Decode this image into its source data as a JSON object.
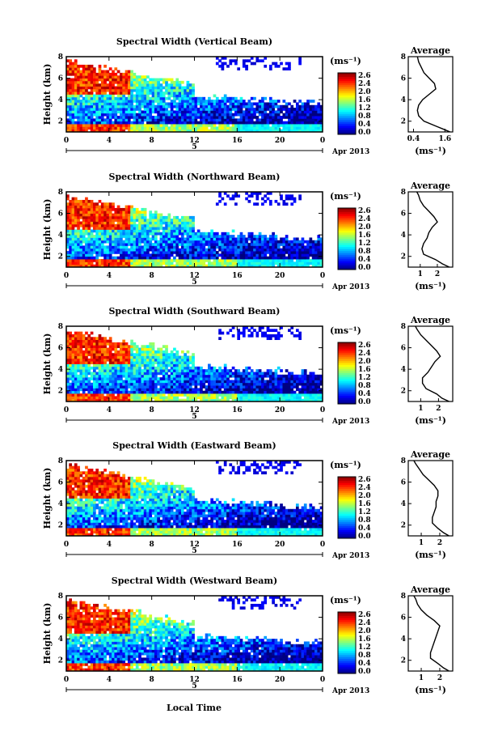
{
  "figure": {
    "xlabel": "Local Time",
    "date_label": "Apr 2013",
    "unit_label": "(ms⁻¹)"
  },
  "chart_data": [
    {
      "type": "heatmap",
      "title": "Spectral Width (Vertical Beam)",
      "ylabel": "Height (km)",
      "x_ticks": [
        "0",
        "4",
        "8",
        "12",
        "16",
        "20",
        "0"
      ],
      "day_label": "5",
      "y_ticks": [
        "2",
        "4",
        "6",
        "8"
      ],
      "xlim": [
        0,
        24
      ],
      "ylim": [
        1,
        8
      ],
      "colorbar": {
        "ticks": [
          "2.6",
          "2.4",
          "2.0",
          "1.6",
          "1.2",
          "0.8",
          "0.4",
          "0.0"
        ],
        "range": [
          0,
          2.8
        ]
      },
      "average": {
        "title": "Average",
        "xlabel": "(ms⁻¹)",
        "x_ticks": [
          "0.4",
          "1.6"
        ],
        "xlim": [
          0.2,
          1.9
        ],
        "profile": [
          [
            1.8,
            1.0
          ],
          [
            1.6,
            1.2
          ],
          [
            1.3,
            1.5
          ],
          [
            0.8,
            2.0
          ],
          [
            0.6,
            2.5
          ],
          [
            0.55,
            3.0
          ],
          [
            0.6,
            3.5
          ],
          [
            0.75,
            4.0
          ],
          [
            1.0,
            4.5
          ],
          [
            1.25,
            5.0
          ],
          [
            1.2,
            5.5
          ],
          [
            1.0,
            6.0
          ],
          [
            0.8,
            6.5
          ],
          [
            0.7,
            7.0
          ],
          [
            0.6,
            7.5
          ],
          [
            0.55,
            8.0
          ]
        ]
      }
    },
    {
      "type": "heatmap",
      "title": "Spectral Width (Northward Beam)",
      "ylabel": "Height (km)",
      "x_ticks": [
        "0",
        "4",
        "8",
        "12",
        "16",
        "20",
        "0"
      ],
      "day_label": "5",
      "y_ticks": [
        "2",
        "4",
        "6",
        "8"
      ],
      "xlim": [
        0,
        24
      ],
      "ylim": [
        1,
        8
      ],
      "colorbar": {
        "ticks": [
          "2.6",
          "2.4",
          "2.0",
          "1.6",
          "1.2",
          "0.8",
          "0.4",
          "0.0"
        ],
        "range": [
          0,
          2.8
        ]
      },
      "average": {
        "title": "Average",
        "xlabel": "(ms⁻¹)",
        "x_ticks": [
          "1",
          "2"
        ],
        "xlim": [
          0.3,
          2.9
        ],
        "profile": [
          [
            2.7,
            1.0
          ],
          [
            2.3,
            1.3
          ],
          [
            1.9,
            1.7
          ],
          [
            1.2,
            2.2
          ],
          [
            1.1,
            2.7
          ],
          [
            1.2,
            3.2
          ],
          [
            1.4,
            3.7
          ],
          [
            1.5,
            4.2
          ],
          [
            1.7,
            4.7
          ],
          [
            2.0,
            5.2
          ],
          [
            1.8,
            5.7
          ],
          [
            1.5,
            6.2
          ],
          [
            1.2,
            6.7
          ],
          [
            1.0,
            7.2
          ],
          [
            0.9,
            7.7
          ],
          [
            0.8,
            8.0
          ]
        ]
      }
    },
    {
      "type": "heatmap",
      "title": "Spectral Width (Southward Beam)",
      "ylabel": "Height (km)",
      "x_ticks": [
        "0",
        "4",
        "8",
        "12",
        "16",
        "20",
        "0"
      ],
      "day_label": "5",
      "y_ticks": [
        "2",
        "4",
        "6",
        "8"
      ],
      "xlim": [
        0,
        24
      ],
      "ylim": [
        1,
        8
      ],
      "colorbar": {
        "ticks": [
          "2.6",
          "2.4",
          "2.0",
          "1.6",
          "1.2",
          "0.8",
          "0.4",
          "0.0"
        ],
        "range": [
          0,
          2.8
        ]
      },
      "average": {
        "title": "Average",
        "xlabel": "(ms⁻¹)",
        "x_ticks": [
          "1",
          "2"
        ],
        "xlim": [
          0.3,
          2.8
        ],
        "profile": [
          [
            2.6,
            1.0
          ],
          [
            2.2,
            1.3
          ],
          [
            1.9,
            1.7
          ],
          [
            1.3,
            2.2
          ],
          [
            1.1,
            2.7
          ],
          [
            1.1,
            3.2
          ],
          [
            1.4,
            3.7
          ],
          [
            1.6,
            4.2
          ],
          [
            1.8,
            4.7
          ],
          [
            2.1,
            5.2
          ],
          [
            1.9,
            5.7
          ],
          [
            1.6,
            6.2
          ],
          [
            1.3,
            6.7
          ],
          [
            1.0,
            7.2
          ],
          [
            0.8,
            7.7
          ],
          [
            0.7,
            8.0
          ]
        ]
      }
    },
    {
      "type": "heatmap",
      "title": "Spectral Width (Eastward Beam)",
      "ylabel": "Height (km)",
      "x_ticks": [
        "0",
        "4",
        "8",
        "12",
        "16",
        "20",
        "0"
      ],
      "day_label": "5",
      "y_ticks": [
        "2",
        "4",
        "6",
        "8"
      ],
      "xlim": [
        0,
        24
      ],
      "ylim": [
        1,
        8
      ],
      "colorbar": {
        "ticks": [
          "2.6",
          "2.4",
          "2.0",
          "1.6",
          "1.2",
          "0.8",
          "0.4",
          "0.0"
        ],
        "range": [
          0,
          2.8
        ]
      },
      "average": {
        "title": "Average",
        "xlabel": "(ms⁻¹)",
        "x_ticks": [
          "1",
          "2"
        ],
        "xlim": [
          0.3,
          2.7
        ],
        "profile": [
          [
            2.5,
            1.0
          ],
          [
            2.2,
            1.3
          ],
          [
            1.9,
            1.7
          ],
          [
            1.6,
            2.2
          ],
          [
            1.6,
            2.7
          ],
          [
            1.7,
            3.2
          ],
          [
            1.8,
            3.7
          ],
          [
            1.8,
            4.2
          ],
          [
            1.9,
            4.7
          ],
          [
            1.9,
            5.2
          ],
          [
            1.7,
            5.7
          ],
          [
            1.4,
            6.2
          ],
          [
            1.1,
            6.7
          ],
          [
            0.9,
            7.2
          ],
          [
            0.7,
            7.7
          ],
          [
            0.6,
            8.0
          ]
        ]
      }
    },
    {
      "type": "heatmap",
      "title": "Spectral Width (Westward Beam)",
      "ylabel": "Height (km)",
      "x_ticks": [
        "0",
        "4",
        "8",
        "12",
        "16",
        "20",
        "0"
      ],
      "day_label": "5",
      "y_ticks": [
        "2",
        "4",
        "6",
        "8"
      ],
      "xlim": [
        0,
        24
      ],
      "ylim": [
        1,
        8
      ],
      "colorbar": {
        "ticks": [
          "2.6",
          "2.4",
          "2.0",
          "1.6",
          "1.2",
          "0.8",
          "0.4",
          "0.0"
        ],
        "range": [
          0,
          2.8
        ]
      },
      "average": {
        "title": "Average",
        "xlabel": "(ms⁻¹)",
        "x_ticks": [
          "1",
          "2"
        ],
        "xlim": [
          0.3,
          2.7
        ],
        "profile": [
          [
            2.5,
            1.0
          ],
          [
            2.2,
            1.3
          ],
          [
            1.9,
            1.7
          ],
          [
            1.5,
            2.2
          ],
          [
            1.5,
            2.7
          ],
          [
            1.6,
            3.2
          ],
          [
            1.7,
            3.7
          ],
          [
            1.8,
            4.2
          ],
          [
            1.9,
            4.7
          ],
          [
            2.0,
            5.2
          ],
          [
            1.7,
            5.7
          ],
          [
            1.3,
            6.2
          ],
          [
            1.0,
            6.7
          ],
          [
            0.8,
            7.2
          ],
          [
            0.7,
            7.7
          ],
          [
            0.6,
            8.0
          ]
        ]
      }
    }
  ]
}
